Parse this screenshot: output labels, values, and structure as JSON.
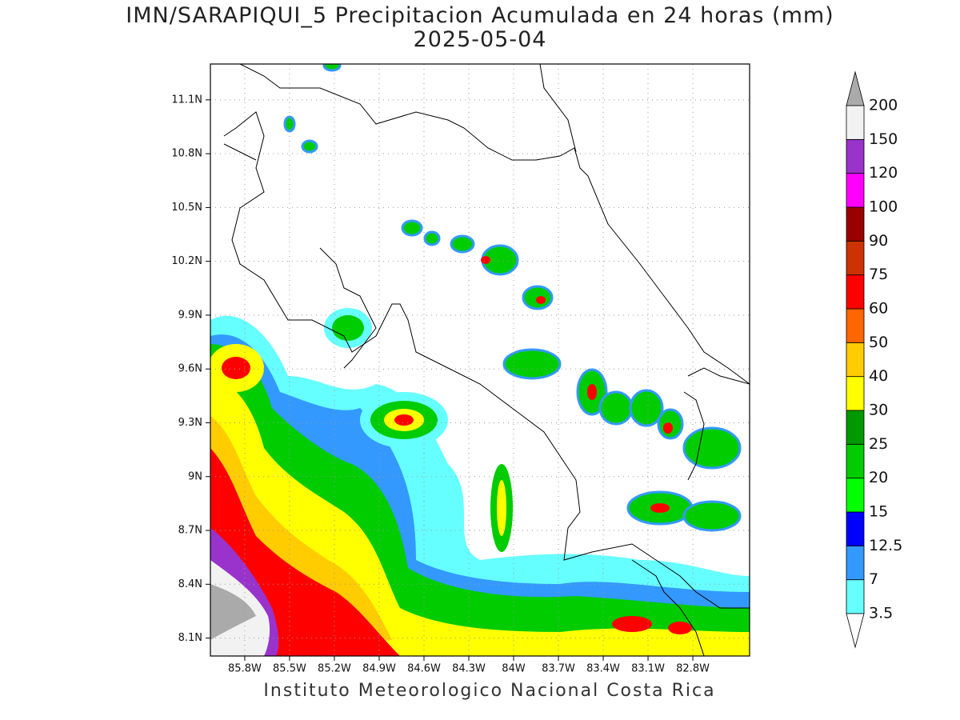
{
  "map": {
    "title": "IMN/SARAPIQUI_5 Precipitacion Acumulada en 24 horas (mm)",
    "subtitle": "2025-05-04",
    "footer": "Instituto Meteorologico Nacional Costa Rica",
    "xlim": [
      -86.03,
      -82.42
    ],
    "ylim": [
      8.0,
      11.3
    ],
    "grid": true,
    "xticks": [
      {
        "value": -85.8,
        "label": "85.8W"
      },
      {
        "value": -85.5,
        "label": "85.5W"
      },
      {
        "value": -85.2,
        "label": "85.2W"
      },
      {
        "value": -84.9,
        "label": "84.9W"
      },
      {
        "value": -84.6,
        "label": "84.6W"
      },
      {
        "value": -84.3,
        "label": "84.3W"
      },
      {
        "value": -84.0,
        "label": "84W"
      },
      {
        "value": -83.7,
        "label": "83.7W"
      },
      {
        "value": -83.4,
        "label": "83.4W"
      },
      {
        "value": -83.1,
        "label": "83.1W"
      },
      {
        "value": -82.8,
        "label": "82.8W"
      }
    ],
    "yticks": [
      {
        "value": 8.1,
        "label": "8.1N"
      },
      {
        "value": 8.4,
        "label": "8.4N"
      },
      {
        "value": 8.7,
        "label": "8.7N"
      },
      {
        "value": 9.0,
        "label": "9N"
      },
      {
        "value": 9.3,
        "label": "9.3N"
      },
      {
        "value": 9.6,
        "label": "9.6N"
      },
      {
        "value": 9.9,
        "label": "9.9N"
      },
      {
        "value": 10.2,
        "label": "10.2N"
      },
      {
        "value": 10.5,
        "label": "10.5N"
      },
      {
        "value": 10.8,
        "label": "10.8N"
      },
      {
        "value": 11.1,
        "label": "11.1N"
      }
    ],
    "colorbar": {
      "levels": [
        3.5,
        7,
        12.5,
        15,
        20,
        25,
        30,
        40,
        50,
        60,
        75,
        90,
        100,
        120,
        150,
        200
      ],
      "colors": [
        "#ffffff",
        "#66ffff",
        "#3399ff",
        "#0000ff",
        "#00ff00",
        "#00cc00",
        "#009900",
        "#ffff00",
        "#ffcc00",
        "#ff6600",
        "#ff0000",
        "#cc3300",
        "#990000",
        "#ff00ff",
        "#9933cc",
        "#f2f2f2",
        "#aaaaaa"
      ]
    }
  }
}
